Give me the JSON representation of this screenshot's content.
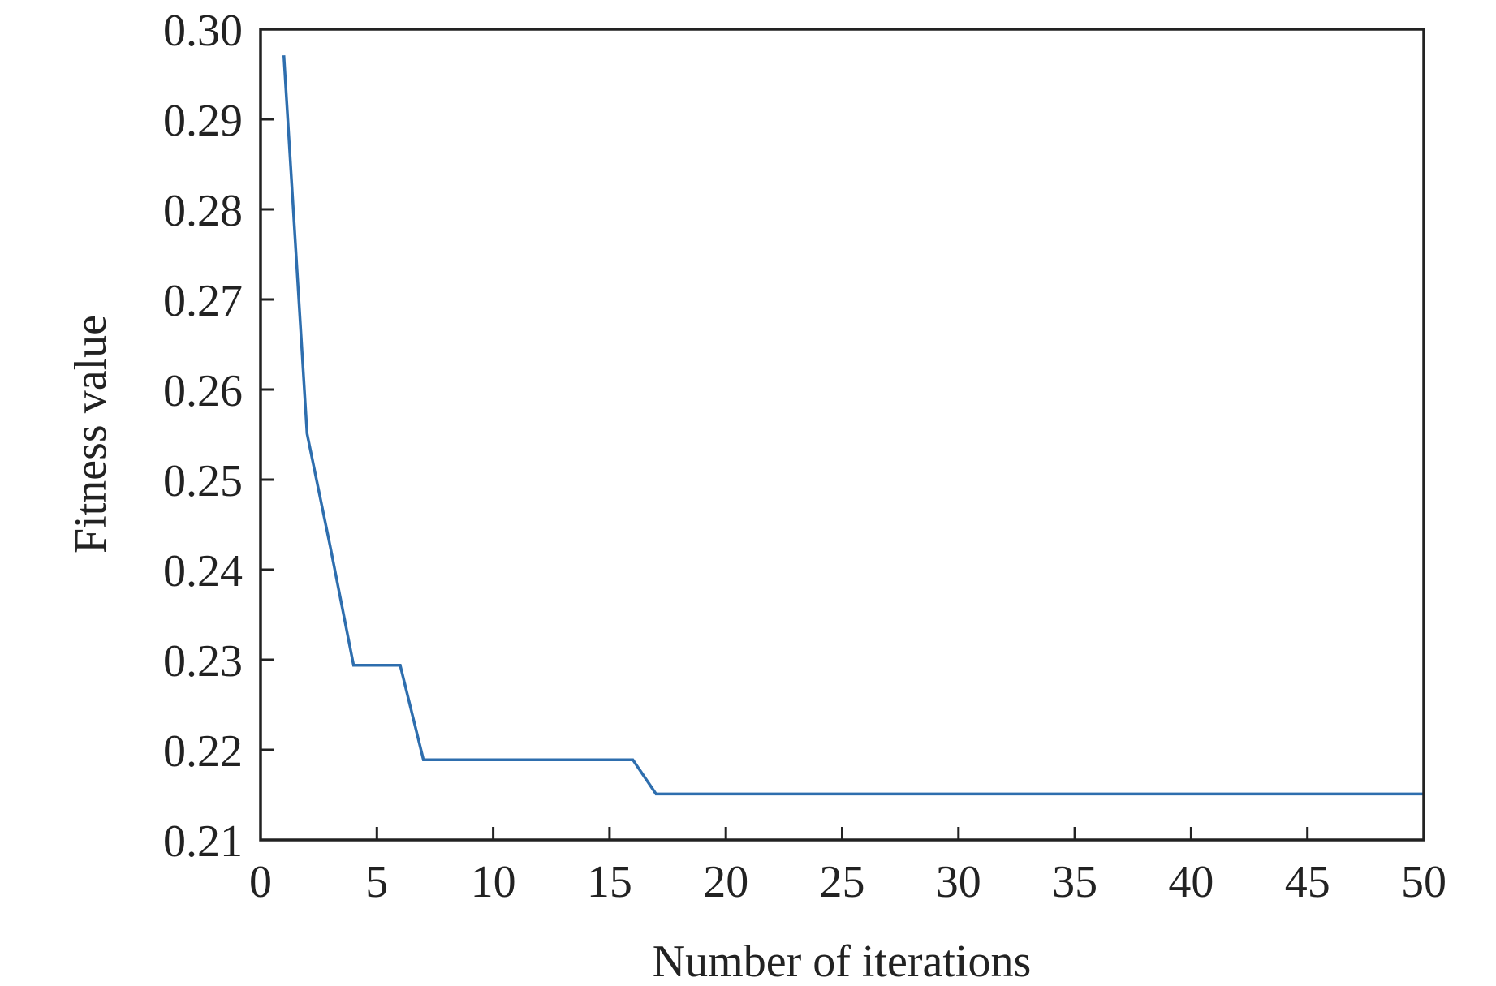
{
  "chart_data": {
    "type": "line",
    "title": "",
    "xlabel": "Number of iterations",
    "ylabel": "Fitness value",
    "xlim": [
      0,
      50
    ],
    "ylim": [
      0.21,
      0.3
    ],
    "xticks": [
      "0",
      "5",
      "10",
      "15",
      "20",
      "25",
      "30",
      "35",
      "40",
      "45",
      "50"
    ],
    "yticks": [
      "0.21",
      "0.22",
      "0.23",
      "0.24",
      "0.25",
      "0.26",
      "0.27",
      "0.28",
      "0.29",
      "0.30"
    ],
    "grid": false,
    "series": [
      {
        "name": "Fitness",
        "color": "#2e6eae",
        "x": [
          1,
          2,
          3,
          4,
          5,
          6,
          7,
          8,
          9,
          10,
          11,
          12,
          13,
          14,
          15,
          16,
          17,
          18,
          19,
          20,
          21,
          22,
          23,
          24,
          25,
          26,
          27,
          28,
          29,
          30,
          31,
          32,
          33,
          34,
          35,
          36,
          37,
          38,
          39,
          40,
          41,
          42,
          43,
          44,
          45,
          46,
          47,
          48,
          49,
          50
        ],
        "y": [
          0.2971,
          0.2551,
          0.2425,
          0.2294,
          0.2294,
          0.2294,
          0.2189,
          0.2189,
          0.2189,
          0.2189,
          0.2189,
          0.2189,
          0.2189,
          0.2189,
          0.2189,
          0.2189,
          0.2151,
          0.2151,
          0.2151,
          0.2151,
          0.2151,
          0.2151,
          0.2151,
          0.2151,
          0.2151,
          0.2151,
          0.2151,
          0.2151,
          0.2151,
          0.2151,
          0.2151,
          0.2151,
          0.2151,
          0.2151,
          0.2151,
          0.2151,
          0.2151,
          0.2151,
          0.2151,
          0.2151,
          0.2151,
          0.2151,
          0.2151,
          0.2151,
          0.2151,
          0.2151,
          0.2151,
          0.2151,
          0.2151,
          0.2151
        ]
      }
    ]
  }
}
